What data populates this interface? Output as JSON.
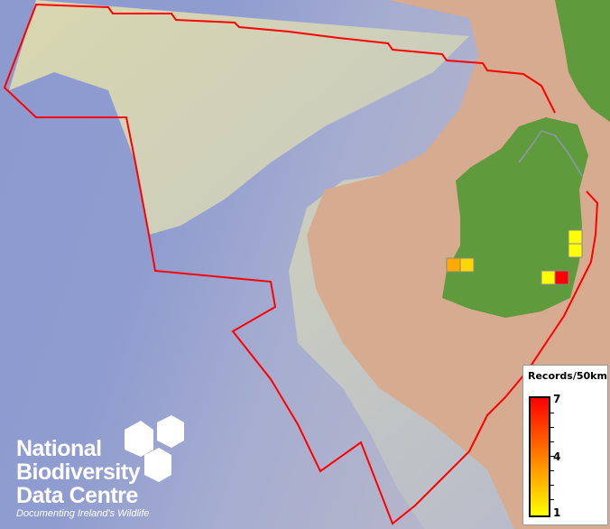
{
  "map": {
    "boundary_color": "#ff0000",
    "land_color": "#5f9a3c",
    "grid_squares": [
      {
        "value": 3,
        "color": "#ffaa00"
      },
      {
        "value": 2,
        "color": "#ffd700"
      },
      {
        "value": 1,
        "color": "#ffff00"
      },
      {
        "value": 1,
        "color": "#ffff00"
      },
      {
        "value": 1,
        "color": "#ffff00"
      },
      {
        "value": 7,
        "color": "#ff0000"
      }
    ]
  },
  "legend": {
    "title": "Records/50km",
    "max_label": "7",
    "mid_label": "4",
    "min_label": "1",
    "color_high": "#ff0000",
    "color_low": "#ffff00"
  },
  "logo": {
    "line1": "National",
    "line2": "Biodiversity",
    "line3": "Data Centre",
    "tagline": "Documenting Ireland's Wildlife"
  }
}
